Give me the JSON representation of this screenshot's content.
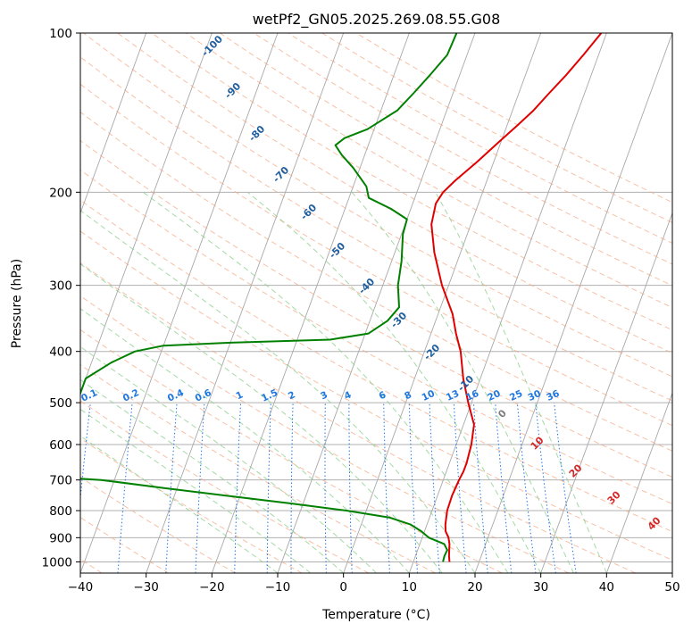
{
  "chart_data": {
    "type": "line",
    "subtype": "skew-t log-p",
    "title": "wetPf2_GN05.2025.269.08.55.G08",
    "xlabel": "Temperature (°C)",
    "ylabel": "Pressure (hPa)",
    "xlim": [
      -40,
      50
    ],
    "ylim": [
      1050,
      100
    ],
    "y_scale": "log",
    "grid": true,
    "x_ticks": [
      -40,
      -30,
      -20,
      -10,
      0,
      10,
      20,
      30,
      40,
      50
    ],
    "y_ticks": [
      100,
      200,
      300,
      400,
      500,
      600,
      700,
      800,
      900,
      1000
    ],
    "dry_adiabat_labels": [
      -100,
      -90,
      -80,
      -70,
      -60,
      -50,
      -40,
      -30,
      -20,
      -10,
      0,
      10,
      20,
      30,
      40
    ],
    "mixing_ratio_labels": [
      "0.1",
      "0.2",
      "0.4",
      "0.6",
      "1",
      "1.5",
      "2",
      "3",
      "4",
      "6",
      "8",
      "10",
      "13",
      "16",
      "20",
      "25",
      "30",
      "36"
    ],
    "colors": {
      "temperature": "#e00000",
      "dewpoint": "#008000",
      "dry_adiabat": "#f4a582",
      "moist_adiabat": "#8fcf8f",
      "mixing_ratio": "#1f77e0",
      "isotherm": "#999999",
      "adiabat_label": "#1f5f9f",
      "warm_label": "#d62728",
      "zero_label": "#7f7f7f"
    },
    "series": [
      {
        "key": "temperature",
        "points": [
          [
            1000,
            15.5
          ],
          [
            975,
            15.1
          ],
          [
            950,
            14.8
          ],
          [
            925,
            14.5
          ],
          [
            900,
            14.0
          ],
          [
            875,
            13.2
          ],
          [
            850,
            12.8
          ],
          [
            800,
            12.3
          ],
          [
            750,
            12.2
          ],
          [
            700,
            12.4
          ],
          [
            675,
            12.6
          ],
          [
            650,
            12.6
          ],
          [
            600,
            12.3
          ],
          [
            550,
            11.6
          ],
          [
            500,
            9.5
          ],
          [
            450,
            7.4
          ],
          [
            400,
            5.5
          ],
          [
            370,
            3.8
          ],
          [
            340,
            2.2
          ],
          [
            300,
            -1.0
          ],
          [
            260,
            -4.0
          ],
          [
            230,
            -6.0
          ],
          [
            210,
            -6.5
          ],
          [
            200,
            -6.0
          ],
          [
            190,
            -4.8
          ],
          [
            175,
            -2.5
          ],
          [
            160,
            -0.2
          ],
          [
            150,
            1.5
          ],
          [
            140,
            3.2
          ],
          [
            130,
            4.6
          ],
          [
            120,
            6.2
          ],
          [
            110,
            7.7
          ],
          [
            100,
            9.2
          ]
        ]
      },
      {
        "key": "dewpoint",
        "points": [
          [
            1000,
            14.5
          ],
          [
            975,
            14.4
          ],
          [
            950,
            14.5
          ],
          [
            925,
            13.7
          ],
          [
            900,
            11.0
          ],
          [
            875,
            9.5
          ],
          [
            850,
            7.5
          ],
          [
            825,
            4.0
          ],
          [
            800,
            -3.0
          ],
          [
            775,
            -12.0
          ],
          [
            750,
            -22.0
          ],
          [
            725,
            -32.0
          ],
          [
            700,
            -42.0
          ],
          [
            690,
            -50.0
          ],
          [
            450,
            -50.0
          ],
          [
            420,
            -47.0
          ],
          [
            400,
            -44.0
          ],
          [
            390,
            -40.0
          ],
          [
            385,
            -30.0
          ],
          [
            380,
            -15.0
          ],
          [
            370,
            -9.5
          ],
          [
            350,
            -7.3
          ],
          [
            330,
            -6.3
          ],
          [
            300,
            -7.7
          ],
          [
            270,
            -8.5
          ],
          [
            240,
            -9.8
          ],
          [
            225,
            -10.0
          ],
          [
            215,
            -13.0
          ],
          [
            205,
            -17.0
          ],
          [
            195,
            -18.0
          ],
          [
            180,
            -21.0
          ],
          [
            170,
            -23.5
          ],
          [
            163,
            -25.0
          ],
          [
            158,
            -24.0
          ],
          [
            152,
            -21.0
          ],
          [
            140,
            -17.5
          ],
          [
            130,
            -16.0
          ],
          [
            120,
            -14.5
          ],
          [
            110,
            -13.0
          ],
          [
            100,
            -12.8
          ]
        ]
      }
    ]
  }
}
